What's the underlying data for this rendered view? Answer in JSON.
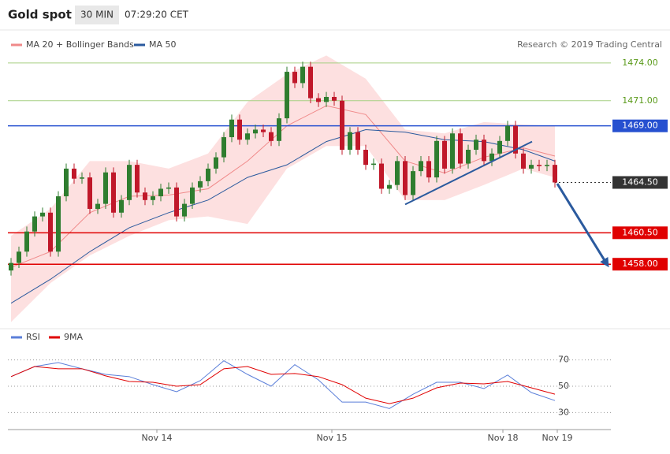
{
  "header": {
    "title": "Gold spot",
    "interval": "30 MIN",
    "time": "07:29:20 CET"
  },
  "credit": "Research © 2019 Trading Central",
  "chart_data": [
    {
      "type": "candlestick",
      "open": [
        1457.5,
        1458.1,
        1459.0,
        1460.6,
        1461.8,
        1462.1,
        1459.0,
        1463.4,
        1465.6,
        1464.8,
        1464.9,
        1462.4,
        1462.8,
        1465.3,
        1462.1,
        1463.1,
        1465.9,
        1463.7,
        1463.1,
        1463.4,
        1464.0,
        1464.1,
        1461.8,
        1462.8,
        1464.1,
        1464.6,
        1465.6,
        1466.5,
        1468.1,
        1469.5,
        1467.9,
        1468.4,
        1468.7,
        1468.5,
        1467.8,
        1469.6,
        1473.3,
        1472.4,
        1473.7,
        1471.2,
        1470.9,
        1471.3,
        1471.0,
        1467.1,
        1468.5,
        1467.1,
        1465.9,
        1466.0,
        1464.0,
        1464.3,
        1466.2,
        1463.5,
        1465.4,
        1466.2,
        1464.9,
        1467.8,
        1465.6,
        1468.4,
        1466.0,
        1467.1,
        1467.9,
        1466.2,
        1466.8,
        1467.8,
        1469.0,
        1466.8,
        1465.6,
        1465.9,
        1465.8,
        1465.9
      ],
      "high": [
        1458.5,
        1459.4,
        1461.0,
        1462.2,
        1462.5,
        1462.5,
        1463.8,
        1466.0,
        1466.0,
        1465.3,
        1465.3,
        1463.2,
        1465.7,
        1465.7,
        1463.5,
        1466.3,
        1466.3,
        1464.1,
        1463.8,
        1464.4,
        1464.5,
        1464.5,
        1463.2,
        1464.5,
        1465.0,
        1466.0,
        1466.9,
        1468.5,
        1469.9,
        1469.9,
        1468.8,
        1469.1,
        1469.1,
        1468.9,
        1470.0,
        1473.7,
        1473.7,
        1474.1,
        1474.1,
        1471.6,
        1471.7,
        1471.7,
        1471.4,
        1468.9,
        1468.9,
        1467.5,
        1466.4,
        1466.4,
        1464.7,
        1466.6,
        1466.6,
        1465.8,
        1466.6,
        1466.6,
        1468.2,
        1468.2,
        1468.8,
        1468.8,
        1467.5,
        1468.3,
        1468.3,
        1467.2,
        1468.2,
        1469.4,
        1469.4,
        1467.2,
        1466.3,
        1466.3,
        1466.3,
        1466.3
      ],
      "low": [
        1457.1,
        1457.7,
        1458.6,
        1460.2,
        1461.4,
        1458.6,
        1458.6,
        1463.0,
        1464.4,
        1464.4,
        1462.0,
        1462.0,
        1462.4,
        1461.7,
        1461.7,
        1462.7,
        1463.3,
        1462.7,
        1462.7,
        1463.0,
        1463.6,
        1461.4,
        1461.4,
        1462.4,
        1463.7,
        1464.2,
        1465.2,
        1466.1,
        1467.7,
        1467.5,
        1467.5,
        1468.0,
        1468.1,
        1467.4,
        1467.4,
        1469.2,
        1472.0,
        1472.0,
        1470.8,
        1470.5,
        1470.5,
        1470.6,
        1466.7,
        1466.7,
        1466.7,
        1465.5,
        1465.5,
        1463.6,
        1463.6,
        1463.9,
        1463.1,
        1463.1,
        1465.0,
        1464.5,
        1464.5,
        1465.2,
        1465.2,
        1465.6,
        1465.6,
        1466.7,
        1465.8,
        1465.8,
        1466.4,
        1467.4,
        1466.4,
        1465.2,
        1465.2,
        1465.4,
        1465.4,
        1464.1
      ],
      "close": [
        1458.1,
        1459.0,
        1460.6,
        1461.8,
        1462.1,
        1459.0,
        1463.4,
        1465.6,
        1464.8,
        1464.9,
        1462.4,
        1462.8,
        1465.3,
        1462.1,
        1463.1,
        1465.9,
        1463.7,
        1463.1,
        1463.4,
        1464.0,
        1464.1,
        1461.8,
        1462.8,
        1464.1,
        1464.6,
        1465.6,
        1466.5,
        1468.1,
        1469.5,
        1467.9,
        1468.4,
        1468.7,
        1468.5,
        1467.8,
        1469.6,
        1473.3,
        1472.4,
        1473.7,
        1471.2,
        1470.9,
        1471.3,
        1471.0,
        1467.1,
        1468.5,
        1467.1,
        1465.9,
        1466.0,
        1464.0,
        1464.3,
        1466.2,
        1463.5,
        1465.4,
        1466.2,
        1464.9,
        1467.8,
        1465.6,
        1468.4,
        1466.0,
        1467.1,
        1467.9,
        1466.2,
        1466.8,
        1467.8,
        1469.0,
        1466.8,
        1465.6,
        1465.9,
        1465.8,
        1465.9,
        1464.5
      ],
      "up_color": "#2f7d2f",
      "down_color": "#c0182a",
      "overlays": [
        {
          "name": "MA 20 + Bollinger Bands",
          "color": "#f08a8a",
          "band_color": "#fde0e0",
          "x": [
            0,
            5,
            10,
            15,
            20,
            25,
            30,
            35,
            40,
            45,
            50,
            55,
            60,
            65,
            69
          ],
          "values": [
            1457.75,
            1459.0,
            1462.1,
            1463.4,
            1463.5,
            1464.0,
            1466.2,
            1469.0,
            1470.6,
            1469.9,
            1466.2,
            1465.25,
            1466.5,
            1467.25,
            1466.6
          ],
          "upper": [
            1460.25,
            1462.4,
            1466.2,
            1466.2,
            1465.6,
            1466.8,
            1470.9,
            1473.1,
            1474.6,
            1472.75,
            1468.7,
            1468.4,
            1469.3,
            1469.1,
            1469.0
          ],
          "lower": [
            1453.4,
            1456.5,
            1458.7,
            1460.25,
            1461.5,
            1461.8,
            1461.2,
            1465.6,
            1467.4,
            1467.4,
            1463.1,
            1463.1,
            1464.3,
            1465.6,
            1464.9
          ]
        },
        {
          "name": "MA 50",
          "color": "#2b5a9e",
          "x": [
            0,
            5,
            10,
            15,
            20,
            25,
            30,
            35,
            40,
            45,
            50,
            55,
            60,
            65,
            69
          ],
          "values": [
            1454.9,
            1456.8,
            1459.0,
            1460.9,
            1462.1,
            1463.1,
            1464.9,
            1465.9,
            1467.75,
            1468.7,
            1468.5,
            1467.9,
            1467.75,
            1467.1,
            1466.2
          ]
        }
      ],
      "levels": [
        {
          "value": 1474,
          "label": "1474.00",
          "color": "#a6cf82",
          "text_color": "#5a9a1a",
          "box": false,
          "dash": false
        },
        {
          "value": 1471,
          "label": "1471.00",
          "color": "#a6cf82",
          "text_color": "#5a9a1a",
          "box": false,
          "dash": false
        },
        {
          "value": 1469,
          "label": "1469.00",
          "color": "#2650d0",
          "text_color": "#ffffff",
          "box": true,
          "dash": false
        },
        {
          "value": 1464.5,
          "label": "1464.50",
          "color": "#333333",
          "text_color": "#ffffff",
          "box": true,
          "dash": true
        },
        {
          "value": 1460.5,
          "label": "1460.50",
          "color": "#e00000",
          "text_color": "#ffffff",
          "box": true,
          "dash": false
        },
        {
          "value": 1458,
          "label": "1458.00",
          "color": "#e00000",
          "text_color": "#ffffff",
          "box": true,
          "dash": false
        }
      ],
      "trendline": {
        "x": [
          50,
          66.1
        ],
        "values": [
          1462.75,
          1467.75
        ],
        "color": "#2b5a9e"
      },
      "arrow": {
        "x": [
          69.3,
          75.6
        ],
        "values": [
          1464.4,
          1458.0
        ],
        "color": "#2b5a9e"
      },
      "xlim": [
        -0.4,
        76.1
      ],
      "ylim": [
        1453,
        1476.5
      ]
    },
    {
      "type": "line",
      "x": [
        0,
        3,
        6,
        9,
        12,
        15,
        18,
        21,
        24,
        27,
        30,
        33,
        36,
        39,
        42,
        45,
        48,
        51,
        54,
        57,
        60,
        63,
        66,
        69
      ],
      "series": [
        {
          "name": "RSI",
          "color": "#5b7fd9",
          "values": [
            57.3,
            65,
            68,
            63.3,
            59,
            57.3,
            51.2,
            45.8,
            54.2,
            69.4,
            59,
            50,
            66.4,
            54.8,
            37.9,
            37.9,
            33,
            43.9,
            53,
            53,
            48.2,
            58.5,
            45.2,
            39.1
          ]
        },
        {
          "name": "9MA",
          "color": "#e00000",
          "values": [
            57.3,
            65,
            63.3,
            63.3,
            57.9,
            53.6,
            53,
            50,
            51.2,
            63.3,
            65,
            59,
            59.7,
            57.3,
            51.2,
            40.9,
            36.7,
            40.9,
            48.8,
            52.4,
            51.8,
            53.6,
            48.8,
            43.9
          ]
        }
      ],
      "xlim": [
        -0.4,
        76.1
      ],
      "ylim": [
        20,
        80
      ],
      "yticks": [
        30,
        50,
        70
      ],
      "xticks": [
        {
          "value": 18.5,
          "label": "Nov 14"
        },
        {
          "value": 40.7,
          "label": "Nov 15"
        },
        {
          "value": 62.4,
          "label": "Nov 18"
        },
        {
          "value": 69.3,
          "label": "Nov 19"
        }
      ]
    }
  ]
}
